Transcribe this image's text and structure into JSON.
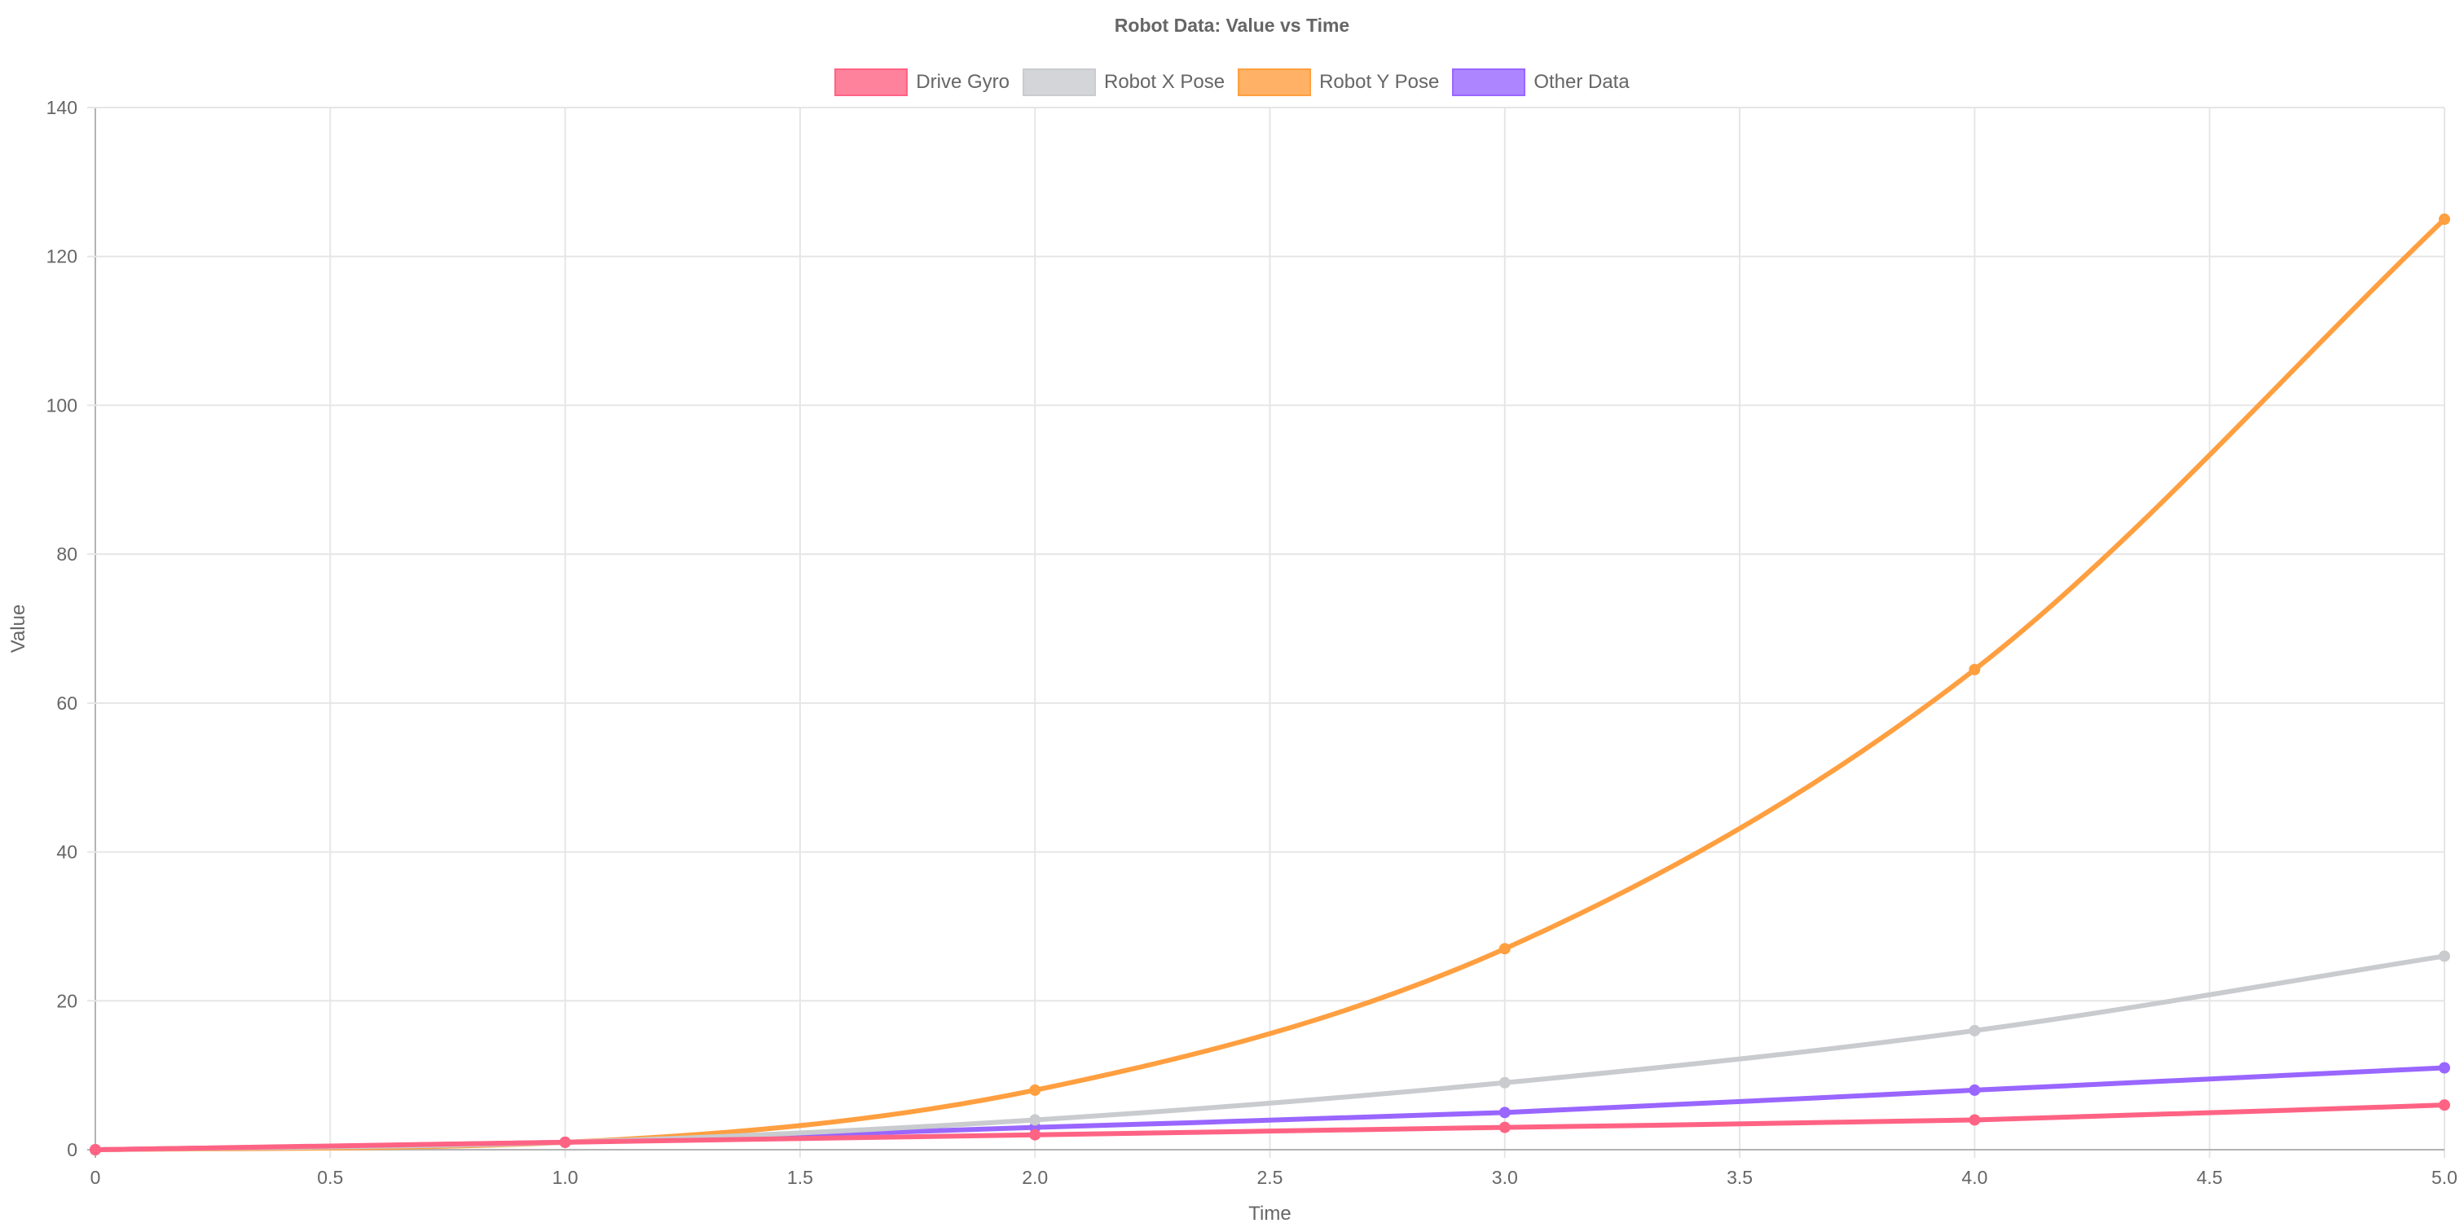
{
  "chart_data": {
    "type": "line",
    "title": "Robot Data: Value vs Time",
    "xlabel": "Time",
    "ylabel": "Value",
    "xlim": [
      0,
      5
    ],
    "ylim": [
      0,
      140
    ],
    "x_ticks": [
      "0",
      "0.5",
      "1.0",
      "1.5",
      "2.0",
      "2.5",
      "3.0",
      "3.5",
      "4.0",
      "4.5",
      "5.0"
    ],
    "y_ticks": [
      "0",
      "20",
      "40",
      "60",
      "80",
      "100",
      "120",
      "140"
    ],
    "grid": true,
    "legend_position": "top",
    "x": [
      0,
      1,
      2,
      3,
      4,
      5
    ],
    "series": [
      {
        "name": "Drive Gyro",
        "color": "#ff6384",
        "values": [
          0,
          1,
          2,
          3,
          4,
          6
        ]
      },
      {
        "name": "Robot X Pose",
        "color": "#c9cbcf",
        "values": [
          0,
          1,
          4,
          9,
          16,
          26
        ]
      },
      {
        "name": "Robot Y Pose",
        "color": "#ff9f40",
        "values": [
          0,
          1,
          8,
          27,
          64.5,
          125
        ]
      },
      {
        "name": "Other Data",
        "color": "#9966ff",
        "values": [
          0,
          1,
          3,
          5,
          8,
          11
        ]
      }
    ]
  }
}
